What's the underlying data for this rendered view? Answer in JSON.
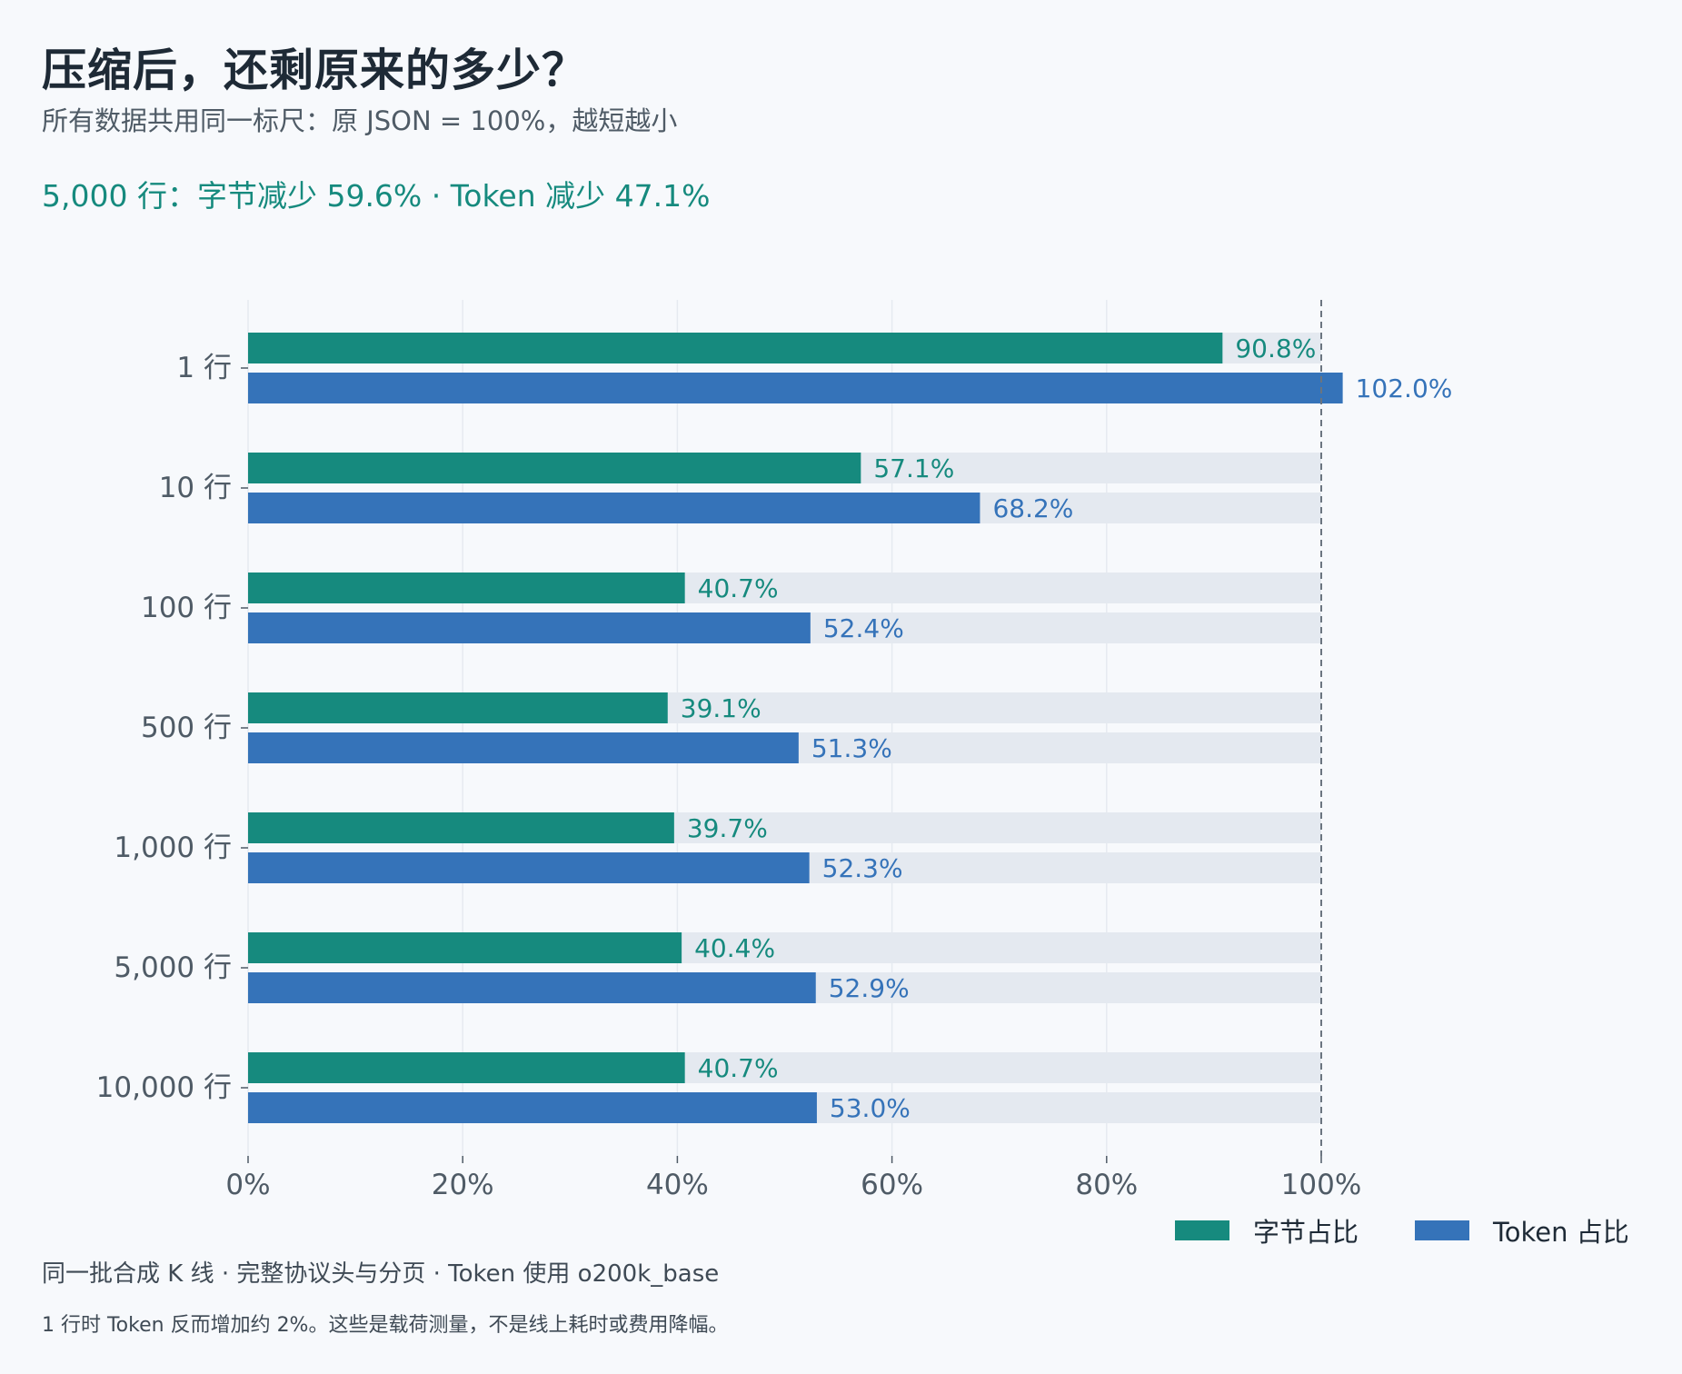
{
  "header": {
    "title": "压缩后，还剩原来的多少？",
    "subtitle": "所有数据共用同一标尺：原 JSON = 100%，越短越小",
    "highlight": "5,000 行：字节减少 59.6% ·   Token 减少 47.1%"
  },
  "footer": {
    "note1": "同一批合成 K 线 ·   完整协议头与分页 ·   Token 使用 o200k_base",
    "note2": "1 行时 Token 反而增加约 2%。这些是载荷测量，不是线上耗时或费用降幅。"
  },
  "colors": {
    "bytes": "#168a7e",
    "token": "#3573b9",
    "track": "#e4e9f0",
    "grid": "#e6eaf0",
    "axis_text": "#4f5b66",
    "reference_line": "#6b7580"
  },
  "legend": [
    {
      "label": "字节占比",
      "color": "#168a7e"
    },
    {
      "label": "Token 占比",
      "color": "#3573b9"
    }
  ],
  "chart_data": {
    "type": "bar",
    "orientation": "horizontal",
    "categories": [
      "1 行",
      "10 行",
      "100 行",
      "500 行",
      "1,000 行",
      "5,000 行",
      "10,000 行"
    ],
    "series": [
      {
        "name": "字节占比",
        "values": [
          90.8,
          57.1,
          40.7,
          39.1,
          39.7,
          40.4,
          40.7
        ],
        "labels": [
          "90.8%",
          "57.1%",
          "40.7%",
          "39.1%",
          "39.7%",
          "40.4%",
          "40.7%"
        ]
      },
      {
        "name": "Token 占比",
        "values": [
          102.0,
          68.2,
          52.4,
          51.3,
          52.3,
          52.9,
          53.0
        ],
        "labels": [
          "102.0%",
          "68.2%",
          "52.4%",
          "51.3%",
          "52.3%",
          "52.9%",
          "53.0%"
        ]
      }
    ],
    "xlim": [
      0,
      100
    ],
    "xticks": [
      0,
      20,
      40,
      60,
      80,
      100
    ],
    "xtick_labels": [
      "0%",
      "20%",
      "40%",
      "60%",
      "80%",
      "100%"
    ],
    "reference_line": 100,
    "grid": true,
    "legend_position": "bottom-right"
  }
}
